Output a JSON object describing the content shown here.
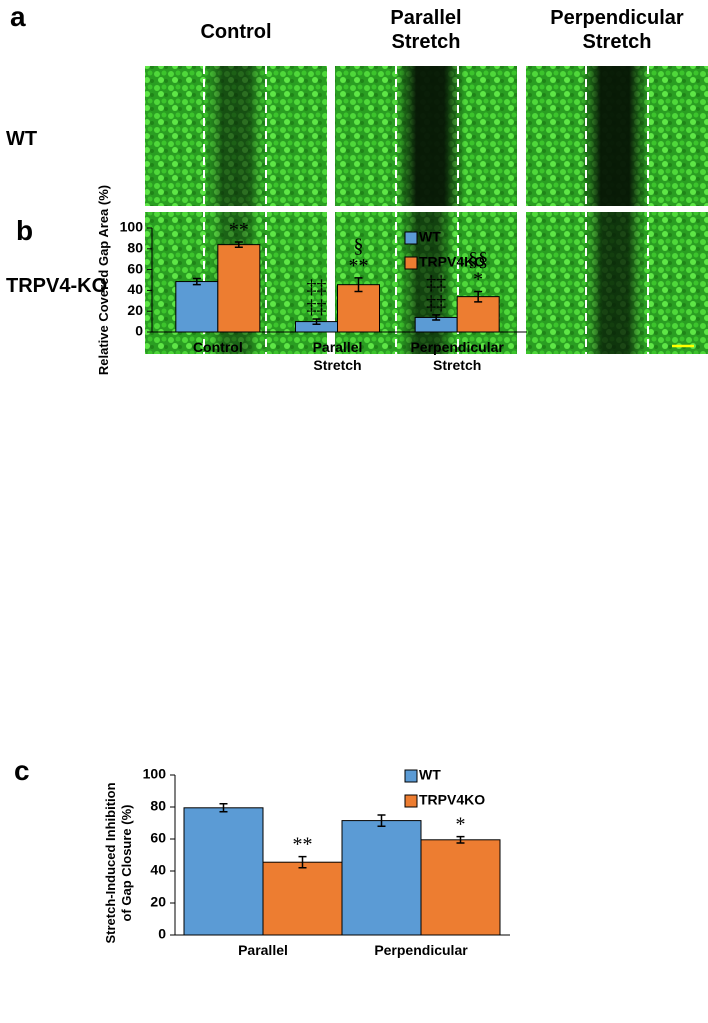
{
  "panel_a": {
    "label": "a",
    "columns": [
      "Control",
      "Parallel\nStretch",
      "Perpendicular\nStretch"
    ],
    "rows": [
      "WT",
      "TRPV4-KO"
    ]
  },
  "chart_data": [
    {
      "type": "bar",
      "label": "b",
      "ylabel": "Relative Covered Gap Area (%)",
      "categories": [
        "Control",
        "Parallel\nStretch",
        "Perpendicular\nStretch"
      ],
      "series": [
        {
          "name": "WT",
          "color": "#5b9bd5",
          "values": [
            48.5,
            10,
            14
          ],
          "errors": [
            3,
            2.5,
            2.5
          ],
          "annotations": [
            null,
            "‡‡\n‡‡",
            "‡‡\n‡‡"
          ]
        },
        {
          "name": "TRPV4KO",
          "color": "#ed7d31",
          "values": [
            84,
            45.5,
            34
          ],
          "errors": [
            2.5,
            6.5,
            5
          ],
          "annotations": [
            "**",
            "§\n**",
            "§§\n*"
          ]
        }
      ],
      "ylim": [
        0,
        100
      ],
      "yticks": [
        0,
        20,
        40,
        60,
        80,
        100
      ],
      "legend": "top-right"
    },
    {
      "type": "bar",
      "label": "c",
      "ylabel": "Stretch-Induced Inhibition\nof Gap Closure (%)",
      "categories": [
        "Parallel",
        "Perpendicular"
      ],
      "series": [
        {
          "name": "WT",
          "color": "#5b9bd5",
          "values": [
            79.5,
            71.5
          ],
          "errors": [
            2.5,
            3.5
          ],
          "annotations": [
            null,
            null
          ]
        },
        {
          "name": "TRPV4KO",
          "color": "#ed7d31",
          "values": [
            45.5,
            59.5
          ],
          "errors": [
            3.5,
            2
          ],
          "annotations": [
            "**",
            "*"
          ]
        }
      ],
      "ylim": [
        0,
        100
      ],
      "yticks": [
        0,
        20,
        40,
        60,
        80,
        100
      ],
      "legend": "top-right"
    }
  ]
}
